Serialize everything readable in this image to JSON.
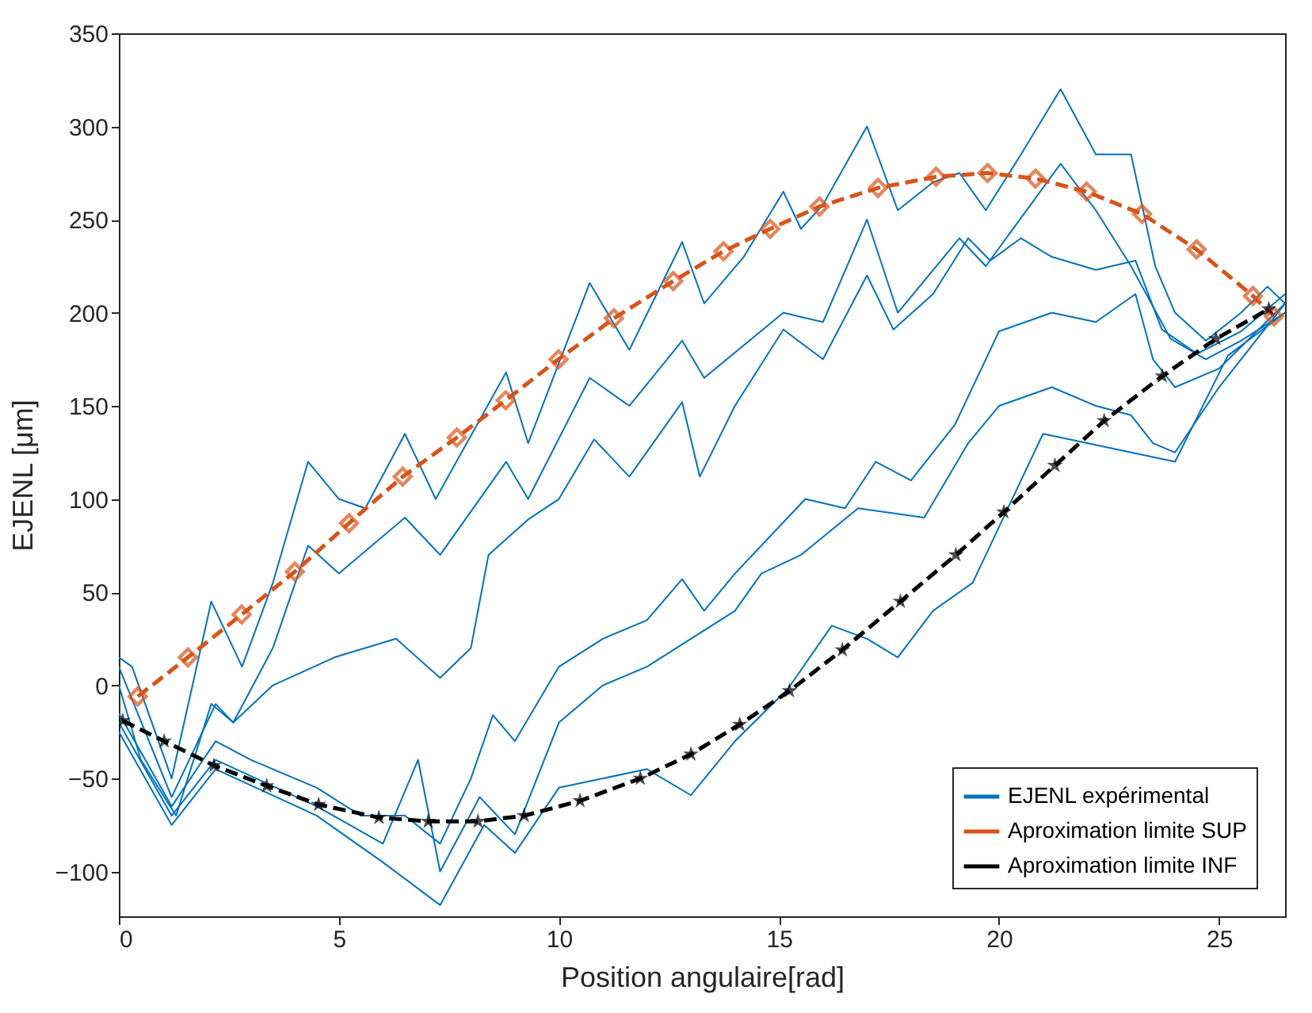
{
  "chart_data": {
    "type": "line",
    "xlabel": "Position angulaire[rad]",
    "ylabel": "EJENL [μm]",
    "xlim": [
      0,
      26.5
    ],
    "ylim": [
      -124,
      350
    ],
    "xticks": [
      0,
      5,
      10,
      15,
      20,
      25
    ],
    "yticks": [
      -100,
      -50,
      0,
      50,
      100,
      150,
      200,
      250,
      300,
      350
    ],
    "grid": false,
    "legend": "bottom right",
    "series": [
      {
        "name": "EJENL expérimental",
        "color": "#0072bd",
        "x": [
          0,
          0.3,
          1.2,
          2.1,
          2.8,
          3.5,
          4.3,
          5.0,
          5.6,
          6.5,
          7.2,
          8.8,
          9.3,
          10.7,
          11.6,
          12.8,
          13.3,
          14.2,
          15.1,
          15.5,
          16.0,
          17.0,
          17.7,
          18.5,
          19.1,
          19.7,
          20.5,
          21.4,
          22.2,
          23.0,
          23.55,
          24.0,
          24.7,
          25.5,
          26.1,
          26.5
        ],
        "values": [
          15,
          10,
          -50,
          45,
          10,
          55,
          120,
          100,
          95,
          135,
          100,
          168,
          130,
          216,
          180,
          238,
          205,
          230,
          265,
          245,
          258,
          300,
          255,
          270,
          275,
          255,
          285,
          320,
          285,
          285,
          225,
          200,
          185,
          200,
          214,
          205
        ]
      },
      {
        "color": "#0072bd",
        "x": [
          0,
          0.5,
          1.3,
          2.1,
          2.6,
          3.5,
          4.3,
          5.0,
          6.5,
          7.3,
          8.8,
          9.3,
          10.7,
          11.6,
          12.8,
          13.3,
          15.1,
          16.0,
          17.0,
          17.7,
          19.1,
          19.7,
          21.4,
          22.2,
          23.0,
          23.9,
          24.7,
          25.5,
          26.5
        ],
        "values": [
          0,
          -40,
          -70,
          -10,
          -20,
          20,
          75,
          60,
          90,
          70,
          120,
          100,
          165,
          150,
          185,
          165,
          200,
          195,
          250,
          200,
          240,
          225,
          280,
          255,
          225,
          186,
          175,
          185,
          200
        ]
      },
      {
        "color": "#0072bd",
        "x": [
          0,
          1.2,
          2.2,
          2.6,
          3.5,
          4.9,
          6.3,
          7.3,
          8.0,
          8.4,
          9.3,
          10.0,
          10.8,
          11.6,
          12.8,
          13.2,
          14.0,
          15.1,
          16.0,
          17.0,
          17.6,
          18.5,
          19.3,
          19.8,
          20.5,
          21.2,
          22.2,
          23.1,
          23.7,
          24.5,
          25.5,
          26.5
        ],
        "values": [
          10,
          -60,
          -10,
          -20,
          0,
          15,
          25,
          4,
          20,
          70,
          89,
          100,
          132,
          112,
          152,
          112,
          150,
          191,
          175,
          220,
          191,
          210,
          240,
          228,
          240,
          230,
          223,
          228,
          191,
          178,
          190,
          210
        ]
      },
      {
        "color": "#0072bd",
        "x": [
          0,
          1.2,
          2.2,
          3.0,
          4.5,
          5.5,
          6.5,
          7.3,
          8.0,
          8.5,
          9.0,
          10.0,
          11.0,
          12.0,
          12.8,
          13.3,
          14.0,
          15.0,
          15.6,
          16.5,
          17.2,
          18.0,
          19.0,
          20.0,
          21.2,
          22.2,
          23.1,
          23.5,
          24.0,
          25.0,
          26.5
        ],
        "values": [
          -15,
          -65,
          -30,
          -40,
          -55,
          -70,
          -70,
          -85,
          -50,
          -16,
          -30,
          10,
          25,
          35,
          57,
          40,
          60,
          85,
          100,
          95,
          120,
          110,
          140,
          190,
          200,
          195,
          210,
          175,
          160,
          170,
          205
        ]
      },
      {
        "color": "#0072bd",
        "x": [
          0,
          1.2,
          2.2,
          4.5,
          6.0,
          6.8,
          7.3,
          8.2,
          9.0,
          10.0,
          11.0,
          12.0,
          13.0,
          14.0,
          14.6,
          15.5,
          16.8,
          18.3,
          19.3,
          20.0,
          21.2,
          22.2,
          23.0,
          23.5,
          24.0,
          25.0,
          26.5
        ],
        "values": [
          -20,
          -70,
          -40,
          -65,
          -85,
          -40,
          -100,
          -60,
          -80,
          -20,
          0,
          10,
          25,
          40,
          60,
          70,
          95,
          90,
          130,
          150,
          160,
          150,
          145,
          130,
          125,
          160,
          205
        ]
      },
      {
        "color": "#0072bd",
        "x": [
          0,
          1.2,
          2.2,
          4.5,
          6.0,
          7.3,
          8.3,
          9.0,
          10.0,
          11.0,
          12.0,
          13.0,
          14.0,
          15.2,
          16.2,
          17.0,
          17.7,
          18.5,
          19.4,
          20.2,
          21.0,
          22.0,
          23.0,
          24.0,
          25.2,
          26.5
        ],
        "values": [
          -25,
          -75,
          -45,
          -70,
          -95,
          -118,
          -75,
          -90,
          -55,
          -50,
          -45,
          -59,
          -30,
          -2,
          32,
          25,
          15,
          40,
          55,
          95,
          135,
          130,
          125,
          120,
          177,
          200
        ]
      },
      {
        "name": "Aproximation limite SUP",
        "color": "#d95319",
        "marker": "diamond",
        "line_style": "dashed",
        "x": [
          0.43,
          1.57,
          2.79,
          4.0,
          5.23,
          6.45,
          7.68,
          8.79,
          9.99,
          11.25,
          12.6,
          13.74,
          14.8,
          15.92,
          17.25,
          18.57,
          19.74,
          20.83,
          21.99,
          23.25,
          24.49,
          25.77,
          26.25
        ],
        "values": [
          -6,
          15,
          38,
          61,
          87,
          112,
          133,
          153,
          175,
          197,
          217,
          233,
          245,
          257,
          267,
          273,
          275,
          272,
          265,
          253,
          234,
          209,
          198
        ]
      },
      {
        "name": "Aproximation limite INF",
        "color": "#000000",
        "marker": "star",
        "line_style": "dashed",
        "x": [
          0.09,
          1.03,
          2.16,
          3.36,
          4.54,
          5.91,
          7.03,
          8.16,
          9.21,
          10.48,
          11.85,
          13.0,
          14.11,
          15.24,
          16.44,
          17.76,
          19.02,
          20.11,
          21.27,
          22.39,
          23.71,
          24.93,
          26.13
        ],
        "values": [
          -19,
          -30,
          -43,
          -54,
          -64,
          -71,
          -73,
          -73,
          -70,
          -62,
          -50,
          -37,
          -21,
          -3,
          19,
          45,
          70,
          93,
          118,
          142,
          166,
          186,
          202
        ]
      }
    ]
  }
}
